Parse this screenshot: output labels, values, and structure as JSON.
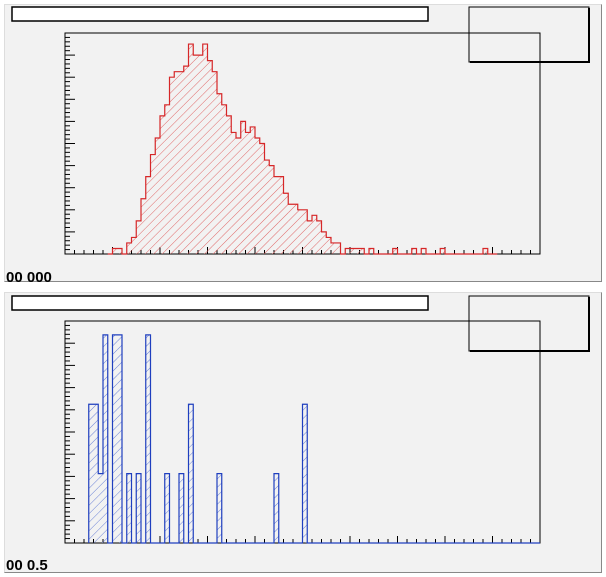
{
  "chart_data": [
    {
      "type": "bar",
      "style": "histogram-step",
      "title": "",
      "stats_box_text": "",
      "xlabel": "",
      "ylabel": "",
      "tick_labels_visible": "00 000",
      "color": "#d62728",
      "fill_pattern": "hatched",
      "x": [
        9,
        10,
        11,
        12,
        13,
        14,
        15,
        16,
        17,
        18,
        19,
        20,
        21,
        22,
        23,
        24,
        25,
        26,
        27,
        28,
        29,
        30,
        31,
        32,
        33,
        34,
        35,
        36,
        37,
        38,
        39,
        40,
        41,
        42,
        43,
        44,
        45,
        46,
        47,
        48,
        49,
        50,
        51,
        52,
        53,
        54,
        55,
        56,
        57,
        58,
        59,
        60,
        61,
        62,
        63,
        64,
        65,
        66,
        67,
        68,
        69,
        70,
        71,
        72,
        73,
        74,
        75,
        76,
        77,
        78,
        79,
        80,
        81,
        82,
        83,
        84,
        85,
        86,
        87,
        88,
        89,
        90
      ],
      "values": [
        0,
        1,
        1,
        0,
        2,
        3,
        6,
        10,
        14,
        18,
        21,
        25,
        27,
        32,
        33,
        33,
        34,
        38,
        36,
        36,
        38,
        35,
        33,
        29,
        27,
        25,
        22,
        21,
        24,
        22,
        23,
        21,
        20,
        17,
        16,
        14,
        14,
        11,
        9,
        9,
        8,
        8,
        6,
        7,
        6,
        4,
        3,
        2,
        2,
        0,
        1,
        1,
        1,
        1,
        0,
        1,
        0,
        0,
        0,
        0,
        1,
        0,
        0,
        0,
        1,
        0,
        1,
        0,
        0,
        0,
        1,
        0,
        0,
        0,
        0,
        0,
        0,
        0,
        0,
        1,
        0,
        0
      ],
      "xlim": [
        0,
        100
      ],
      "ylim": [
        0,
        40
      ]
    },
    {
      "type": "bar",
      "style": "histogram-step",
      "title": "",
      "stats_box_text": "",
      "xlabel": "",
      "ylabel": "",
      "tick_labels_visible": "00 0.5",
      "color": "#1f3fbf",
      "fill_pattern": "hatched",
      "x": [
        5,
        6,
        7,
        8,
        9,
        10,
        11,
        12,
        13,
        14,
        15,
        16,
        17,
        18,
        19,
        20,
        21,
        22,
        23,
        24,
        25,
        26,
        27,
        28,
        29,
        30,
        31,
        32,
        33,
        34,
        35,
        36,
        37,
        38,
        39,
        40,
        41,
        42,
        43,
        44,
        45,
        46,
        47,
        48,
        49,
        50,
        51,
        52,
        53,
        54,
        55,
        56,
        57,
        58,
        59,
        60,
        61,
        62,
        63,
        64,
        65,
        66,
        67,
        68,
        69,
        70,
        71,
        72,
        73,
        74,
        75,
        76,
        77,
        78,
        79,
        80,
        81,
        82,
        83,
        84,
        85,
        86,
        87,
        88,
        89,
        90,
        91,
        92,
        93,
        94,
        95,
        96,
        97,
        98,
        99
      ],
      "values": [
        4,
        4,
        2,
        6,
        0,
        6,
        6,
        0,
        2,
        0,
        2,
        0,
        6,
        0,
        0,
        0,
        2,
        0,
        0,
        2,
        0,
        4,
        0,
        0,
        0,
        0,
        0,
        2,
        0,
        0,
        0,
        0,
        0,
        0,
        0,
        0,
        0,
        0,
        0,
        2,
        0,
        0,
        0,
        0,
        0,
        4,
        0,
        0,
        0,
        0,
        0,
        0,
        0,
        0,
        0,
        0,
        0,
        0,
        0,
        0,
        0,
        0,
        0,
        0,
        0,
        0,
        0,
        0,
        0,
        0,
        0,
        0,
        0,
        0,
        0,
        0,
        0,
        0,
        0,
        0,
        0,
        0,
        0,
        0,
        0,
        0,
        0,
        0,
        0,
        0,
        0,
        0,
        0,
        0,
        0
      ],
      "xlim": [
        0,
        100
      ],
      "ylim": [
        0,
        6.4
      ]
    }
  ]
}
